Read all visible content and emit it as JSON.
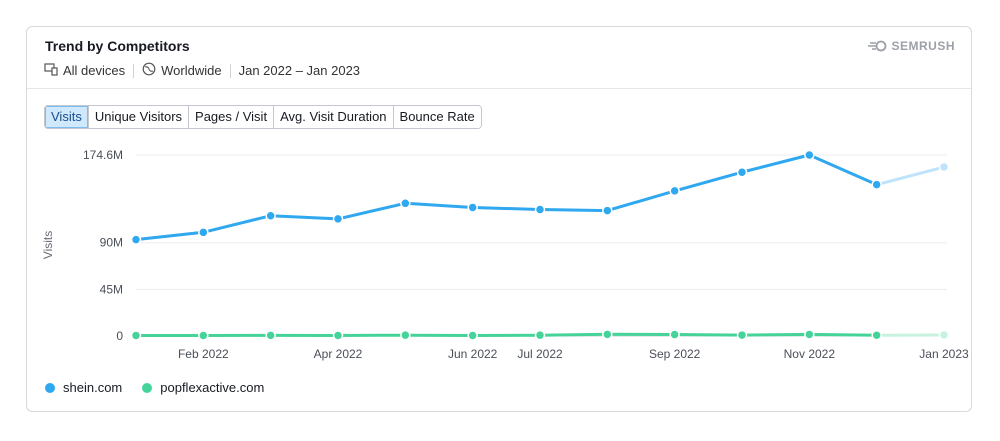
{
  "header": {
    "title": "Trend by Competitors",
    "devices": "All devices",
    "region": "Worldwide",
    "date_range": "Jan 2022 – Jan 2023",
    "brand": "SEMRUSH"
  },
  "tabs": [
    {
      "label": "Visits",
      "active": true
    },
    {
      "label": "Unique Visitors",
      "active": false
    },
    {
      "label": "Pages / Visit",
      "active": false
    },
    {
      "label": "Avg. Visit Duration",
      "active": false
    },
    {
      "label": "Bounce Rate",
      "active": false
    }
  ],
  "colors": {
    "shein": "#2fa8ef",
    "shein_light": "#bfe3fb",
    "popflex": "#46d39a",
    "popflex_light": "#c9f1df"
  },
  "chart_data": {
    "type": "line",
    "ylabel": "Visits",
    "y_ticks": [
      0,
      45,
      90,
      174.6
    ],
    "y_tick_labels": [
      "0",
      "45M",
      "90M",
      "174.6M"
    ],
    "ylim": [
      0,
      174.6
    ],
    "x": [
      "Jan 2022",
      "Feb 2022",
      "Mar 2022",
      "Apr 2022",
      "May 2022",
      "Jun 2022",
      "Jul 2022",
      "Aug 2022",
      "Sep 2022",
      "Oct 2022",
      "Nov 2022",
      "Dec 2022",
      "Jan 2023"
    ],
    "x_tick_labels": [
      {
        "index": 1,
        "label": "Feb 2022"
      },
      {
        "index": 3,
        "label": "Apr 2022"
      },
      {
        "index": 5,
        "label": "Jun 2022"
      },
      {
        "index": 6,
        "label": "Jul 2022"
      },
      {
        "index": 8,
        "label": "Sep 2022"
      },
      {
        "index": 10,
        "label": "Nov 2022"
      },
      {
        "index": 12,
        "label": "Jan 2023"
      }
    ],
    "grid": true,
    "series": [
      {
        "name": "shein.com",
        "values": [
          93,
          100,
          116,
          113,
          128,
          124,
          122,
          121,
          140,
          158,
          174.6,
          146,
          163
        ]
      },
      {
        "name": "popflexactive.com",
        "values": [
          0.5,
          0.5,
          0.6,
          0.5,
          0.8,
          0.5,
          0.8,
          1.6,
          1.4,
          0.9,
          1.5,
          0.7,
          1.0
        ]
      }
    ]
  }
}
